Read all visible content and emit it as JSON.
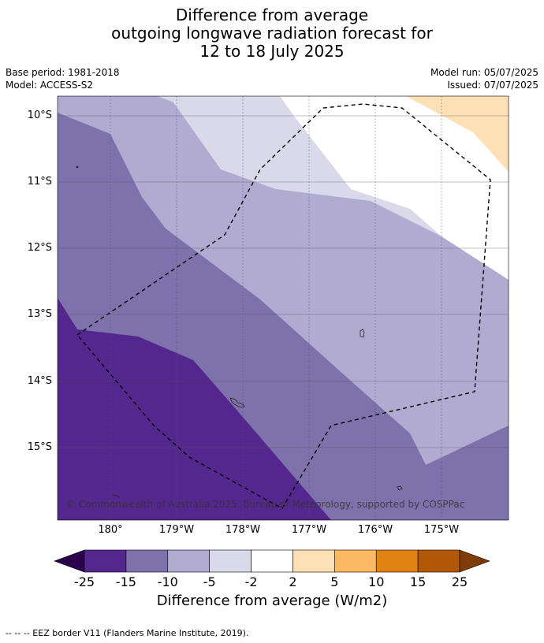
{
  "title": {
    "line1": "Difference from average",
    "line2": "outgoing longwave radiation forecast for",
    "line3": "12 to 18 July 2025"
  },
  "meta": {
    "base_period": "Base period: 1981-2018",
    "model": "Model: ACCESS-S2",
    "model_run": "Model run: 05/07/2025",
    "issued": "Issued: 07/07/2025"
  },
  "map": {
    "lat_labels": [
      "10°S",
      "11°S",
      "12°S",
      "13°S",
      "14°S",
      "15°S"
    ],
    "lon_labels": [
      "180°",
      "179°W",
      "178°W",
      "177°W",
      "176°W",
      "175°W"
    ],
    "copyright": "© Commonwealth of Australia 2025, Bureau of Meteorology, supported by COSPPac",
    "colors": {
      "minus_25_to_15": "#54278f",
      "minus_15_to_10": "#7d72ab",
      "minus_10_to_5": "#b1abd2",
      "minus_5_to_2": "#d9d9ea",
      "minus_2_to_2": "#ffffff",
      "plus_2_to_5": "#fee0b6"
    }
  },
  "colorbar": {
    "ticks": [
      "-25",
      "-15",
      "-10",
      "-5",
      "-2",
      "2",
      "5",
      "10",
      "15",
      "25"
    ],
    "colors": [
      "#2d004b",
      "#54278f",
      "#7d72ab",
      "#b1abd2",
      "#d9d9ea",
      "#ffffff",
      "#fee0b6",
      "#fdb863",
      "#e08214",
      "#b35806",
      "#7f3b08"
    ],
    "label": "Difference from average (W/m2)"
  },
  "footer": "--  --  -- EEZ border V11 (Flanders Marine Institute, 2019)."
}
